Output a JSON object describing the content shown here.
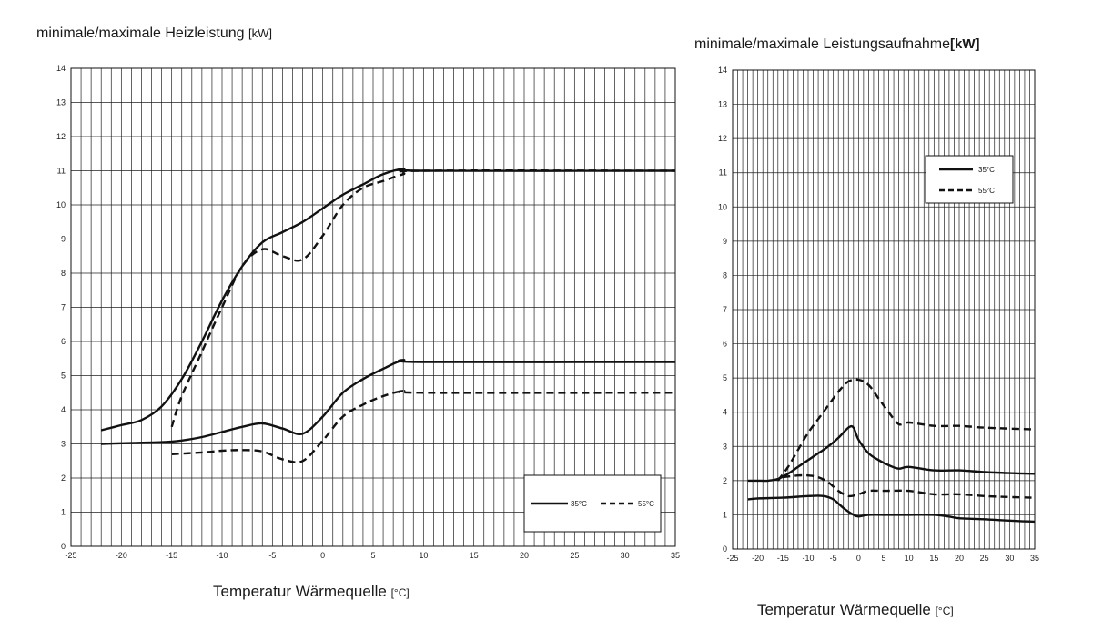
{
  "chart_data": [
    {
      "type": "line",
      "title": "minimale/maximale Heizleistung",
      "title_unit": "[kW]",
      "xlabel": "Temperatur Wärmequelle",
      "xlabel_unit": "[°C]",
      "ylabel": "",
      "xlim": [
        -25,
        35
      ],
      "ylim": [
        0,
        14
      ],
      "xticks": [
        "-25",
        "-20",
        "-15",
        "-10",
        "-5",
        "0",
        "5",
        "10",
        "15",
        "20",
        "25",
        "30",
        "35"
      ],
      "yticks": [
        "0",
        "1",
        "2",
        "3",
        "4",
        "5",
        "6",
        "7",
        "8",
        "9",
        "10",
        "11",
        "12",
        "13",
        "14"
      ],
      "grid": true,
      "legend_placement": "bottom-right",
      "legend": [
        {
          "label": "35°C",
          "style": "solid"
        },
        {
          "label": "55°C",
          "style": "dashed"
        }
      ],
      "series": [
        {
          "name": "35°C",
          "style": "solid",
          "x": [
            -22,
            -20,
            -18,
            -16,
            -14,
            -12,
            -10,
            -8,
            -6,
            -4,
            -2,
            0,
            2,
            4,
            6,
            8,
            10,
            35
          ],
          "y": [
            3.4,
            3.55,
            3.7,
            4.1,
            4.9,
            6.0,
            7.2,
            8.2,
            8.9,
            9.2,
            9.5,
            9.9,
            10.3,
            10.6,
            10.9,
            11.05,
            11.0,
            11.0
          ]
        },
        {
          "name": "35°C",
          "style": "solid",
          "x": [
            -22,
            -20,
            -16,
            -14,
            -12,
            -10,
            -8,
            -6,
            -4,
            -2,
            0,
            2,
            4,
            6,
            8,
            10,
            35
          ],
          "y": [
            3.0,
            3.02,
            3.05,
            3.1,
            3.2,
            3.35,
            3.5,
            3.6,
            3.45,
            3.3,
            3.8,
            4.5,
            4.9,
            5.2,
            5.45,
            5.4,
            5.4
          ]
        },
        {
          "name": "55°C",
          "style": "dashed",
          "x": [
            -15,
            -14,
            -12,
            -10,
            -8,
            -6,
            -4,
            -2,
            0,
            2,
            4,
            6,
            8,
            10,
            35
          ],
          "y": [
            3.5,
            4.4,
            5.7,
            7.0,
            8.2,
            8.7,
            8.5,
            8.4,
            9.1,
            10.0,
            10.5,
            10.7,
            10.9,
            11.0,
            11.0
          ]
        },
        {
          "name": "55°C",
          "style": "dashed",
          "x": [
            -15,
            -12,
            -10,
            -8,
            -6,
            -4,
            -2,
            0,
            2,
            4,
            6,
            8,
            10,
            35
          ],
          "y": [
            2.7,
            2.75,
            2.8,
            2.82,
            2.78,
            2.55,
            2.5,
            3.1,
            3.8,
            4.15,
            4.4,
            4.55,
            4.5,
            4.5
          ]
        }
      ]
    },
    {
      "type": "line",
      "title": "minimale/maximale Leistungsaufnahme",
      "title_unit": "[kW]",
      "xlabel": "Temperatur Wärmequelle",
      "xlabel_unit": "[°C]",
      "ylabel": "",
      "xlim": [
        -25,
        35
      ],
      "ylim": [
        0,
        14
      ],
      "xticks": [
        "-25",
        "-20",
        "-15",
        "-10",
        "-5",
        "0",
        "5",
        "10",
        "15",
        "20",
        "25",
        "30",
        "35"
      ],
      "yticks": [
        "0",
        "1",
        "2",
        "3",
        "4",
        "5",
        "6",
        "7",
        "8",
        "9",
        "10",
        "11",
        "12",
        "13",
        "14"
      ],
      "grid": true,
      "legend_placement": "top-right",
      "legend": [
        {
          "label": "35°C",
          "style": "solid"
        },
        {
          "label": "55°C",
          "style": "dashed"
        }
      ],
      "series": [
        {
          "name": "35°C",
          "style": "solid",
          "x": [
            -22,
            -20,
            -18,
            -16,
            -14,
            -12,
            -10,
            -8,
            -6,
            -4,
            -2,
            -1,
            0,
            2,
            4,
            6,
            8,
            10,
            15,
            20,
            25,
            30,
            35
          ],
          "y": [
            2.0,
            2.0,
            2.0,
            2.05,
            2.2,
            2.4,
            2.6,
            2.8,
            3.0,
            3.25,
            3.55,
            3.55,
            3.2,
            2.8,
            2.6,
            2.45,
            2.35,
            2.4,
            2.3,
            2.3,
            2.25,
            2.22,
            2.2
          ]
        },
        {
          "name": "35°C",
          "style": "solid",
          "x": [
            -22,
            -20,
            -15,
            -10,
            -7,
            -5,
            -3,
            -1,
            0,
            2,
            5,
            10,
            15,
            18,
            20,
            25,
            30,
            35
          ],
          "y": [
            1.45,
            1.48,
            1.5,
            1.55,
            1.55,
            1.45,
            1.2,
            1.0,
            0.95,
            1.0,
            1.0,
            1.0,
            1.0,
            0.95,
            0.9,
            0.87,
            0.83,
            0.8
          ]
        },
        {
          "name": "55°C",
          "style": "dashed",
          "x": [
            -16,
            -14,
            -12,
            -10,
            -8,
            -6,
            -4,
            -2,
            0,
            2,
            4,
            6,
            8,
            10,
            15,
            20,
            25,
            30,
            35
          ],
          "y": [
            2.0,
            2.4,
            2.9,
            3.4,
            3.8,
            4.2,
            4.6,
            4.9,
            4.95,
            4.8,
            4.4,
            4.0,
            3.65,
            3.7,
            3.6,
            3.6,
            3.55,
            3.52,
            3.5
          ]
        },
        {
          "name": "55°C",
          "style": "dashed",
          "x": [
            -15,
            -12,
            -10,
            -8,
            -6,
            -4,
            -2,
            0,
            2,
            5,
            10,
            15,
            20,
            25,
            30,
            35
          ],
          "y": [
            2.1,
            2.15,
            2.15,
            2.1,
            1.95,
            1.7,
            1.55,
            1.6,
            1.7,
            1.7,
            1.7,
            1.6,
            1.6,
            1.55,
            1.52,
            1.5
          ]
        }
      ]
    }
  ]
}
